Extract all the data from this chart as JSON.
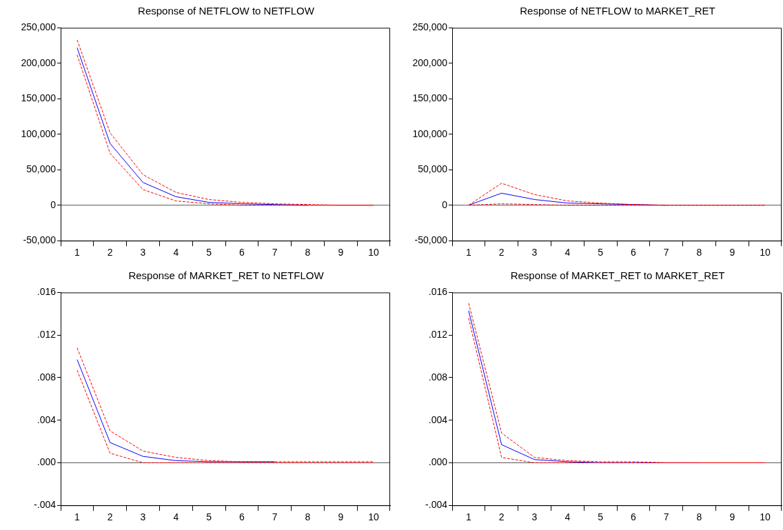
{
  "chart_data": [
    {
      "type": "line",
      "title": "Response of NETFLOW to NETFLOW",
      "categories": [
        "1",
        "2",
        "3",
        "4",
        "5",
        "6",
        "7",
        "8",
        "9",
        "10"
      ],
      "ylim": [
        -50000,
        250000
      ],
      "yticks": [
        {
          "value": -50000,
          "label": "-50,000"
        },
        0,
        {
          "value": 50000,
          "label": "50,000"
        },
        {
          "value": 100000,
          "label": "100,000"
        },
        {
          "value": 150000,
          "label": "150,000"
        },
        {
          "value": 200000,
          "label": "200,000"
        },
        {
          "value": 250000,
          "label": "250,000"
        }
      ],
      "ref_lines": [
        {
          "axis": "y",
          "value": 0,
          "color": "#555555"
        }
      ],
      "series": [
        {
          "color": "#0000ff",
          "line_style": "solid",
          "values": [
            222000,
            87000,
            32000,
            12000,
            4000,
            2000,
            1000,
            0,
            null,
            null
          ]
        },
        {
          "color": "#ff0000",
          "line_style": "dashed",
          "values": [
            233000,
            102000,
            43000,
            18000,
            8000,
            4000,
            2000,
            1000,
            0,
            0
          ]
        },
        {
          "color": "#ff0000",
          "line_style": "dashed",
          "values": [
            212000,
            73000,
            22000,
            6000,
            2000,
            0,
            0,
            0,
            0,
            0
          ]
        }
      ]
    },
    {
      "type": "line",
      "title": "Response of NETFLOW to MARKET_RET",
      "categories": [
        "1",
        "2",
        "3",
        "4",
        "5",
        "6",
        "7",
        "8",
        "9",
        "10"
      ],
      "ylim": [
        -50000,
        250000
      ],
      "yticks": [
        {
          "value": -50000,
          "label": "-50,000"
        },
        0,
        {
          "value": 50000,
          "label": "50,000"
        },
        {
          "value": 100000,
          "label": "100,000"
        },
        {
          "value": 150000,
          "label": "150,000"
        },
        {
          "value": 200000,
          "label": "200,000"
        },
        {
          "value": 250000,
          "label": "250,000"
        }
      ],
      "ref_lines": [
        {
          "axis": "y",
          "value": 0,
          "color": "#555555"
        }
      ],
      "series": [
        {
          "color": "#0000ff",
          "line_style": "solid",
          "values": [
            0,
            17000,
            8000,
            3000,
            2000,
            1000,
            0,
            null,
            null,
            null
          ]
        },
        {
          "color": "#ff0000",
          "line_style": "dashed",
          "values": [
            0,
            31000,
            15000,
            6000,
            3000,
            1000,
            0,
            0,
            0,
            0
          ]
        },
        {
          "color": "#ff0000",
          "line_style": "dashed",
          "values": [
            0,
            2000,
            1000,
            0,
            0,
            0,
            0,
            0,
            0,
            0
          ]
        }
      ]
    },
    {
      "type": "line",
      "title": "Response of MARKET_RET to NETFLOW",
      "categories": [
        "1",
        "2",
        "3",
        "4",
        "5",
        "6",
        "7",
        "8",
        "9",
        "10"
      ],
      "ylim": [
        -0.004,
        0.016
      ],
      "yticks": [
        {
          "value": -0.004,
          "label": "-.004"
        },
        {
          "value": 0,
          "label": ".000"
        },
        {
          "value": 0.004,
          "label": ".004"
        },
        {
          "value": 0.008,
          "label": ".008"
        },
        {
          "value": 0.012,
          "label": ".012"
        },
        {
          "value": 0.016,
          "label": ".016"
        }
      ],
      "ref_lines": [
        {
          "axis": "y",
          "value": 0,
          "color": "#555555"
        }
      ],
      "series": [
        {
          "color": "#0000ff",
          "line_style": "solid",
          "values": [
            0.0097,
            0.0019,
            0.0006,
            0.0002,
            0.0001,
            0.0001,
            0.0001,
            null,
            null,
            null
          ]
        },
        {
          "color": "#ff0000",
          "line_style": "dashed",
          "values": [
            0.0108,
            0.003,
            0.0011,
            0.0005,
            0.0002,
            0.0001,
            0.0001,
            0.0001,
            0.0001,
            0.0001
          ]
        },
        {
          "color": "#ff0000",
          "line_style": "dashed",
          "values": [
            0.0087,
            0.0009,
            0,
            0,
            0,
            0,
            0,
            0,
            0,
            0
          ]
        }
      ]
    },
    {
      "type": "line",
      "title": "Response of MARKET_RET to MARKET_RET",
      "categories": [
        "1",
        "2",
        "3",
        "4",
        "5",
        "6",
        "7",
        "8",
        "9",
        "10"
      ],
      "ylim": [
        -0.004,
        0.016
      ],
      "yticks": [
        {
          "value": -0.004,
          "label": "-.004"
        },
        {
          "value": 0,
          "label": ".000"
        },
        {
          "value": 0.004,
          "label": ".004"
        },
        {
          "value": 0.008,
          "label": ".008"
        },
        {
          "value": 0.012,
          "label": ".012"
        },
        {
          "value": 0.016,
          "label": ".016"
        }
      ],
      "ref_lines": [
        {
          "axis": "y",
          "value": 0,
          "color": "#555555"
        }
      ],
      "series": [
        {
          "color": "#0000ff",
          "line_style": "solid",
          "values": [
            0.0143,
            0.0017,
            0.0003,
            0.0001,
            0,
            0,
            0,
            0,
            null,
            null
          ]
        },
        {
          "color": "#ff0000",
          "line_style": "dashed",
          "values": [
            0.015,
            0.0028,
            0.0005,
            0.0002,
            0.0001,
            0.0001,
            0,
            0,
            0,
            0
          ]
        },
        {
          "color": "#ff0000",
          "line_style": "dashed",
          "values": [
            0.0136,
            0.0005,
            0,
            0,
            0,
            0,
            0,
            0,
            0,
            0
          ]
        }
      ]
    }
  ]
}
